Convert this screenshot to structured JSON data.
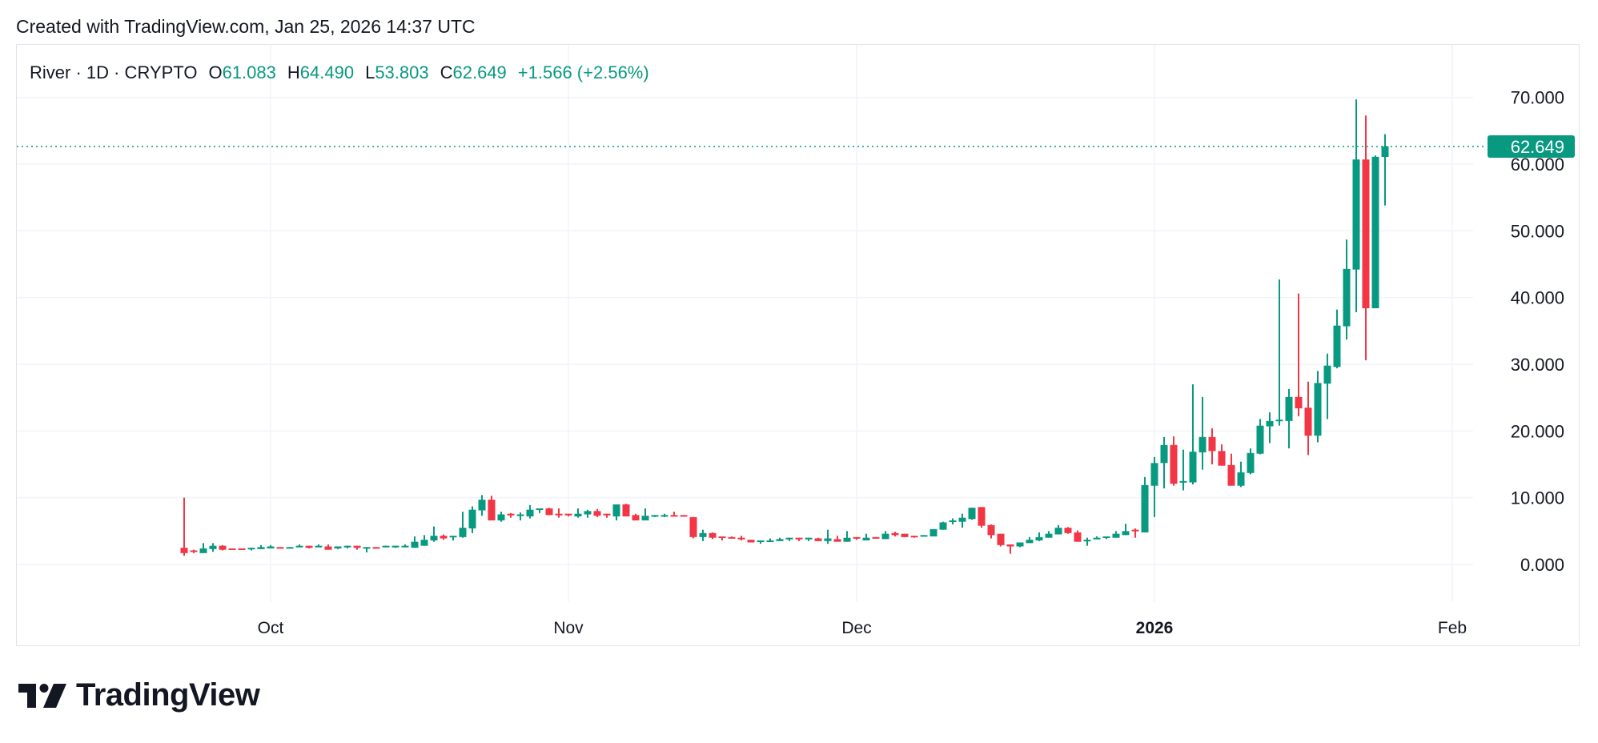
{
  "header": {
    "created": "Created with TradingView.com, Jan 25, 2026 14:37 UTC"
  },
  "legend": {
    "symbol": "River · 1D · CRYPTO",
    "o_label": "O",
    "o_value": "61.083",
    "h_label": "H",
    "h_value": "64.490",
    "l_label": "L",
    "l_value": "53.803",
    "c_label": "C",
    "c_value": "62.649",
    "change": "+1.566 (+2.56%)"
  },
  "logo": {
    "text": "TradingView"
  },
  "colors": {
    "up": "#089981",
    "down": "#F23645",
    "grid": "#f0f3fa",
    "text": "#131722"
  },
  "chart_data": {
    "type": "candlestick",
    "title": "",
    "xlabel": "",
    "ylabel": "",
    "ylim": [
      -5,
      75
    ],
    "y_ticks": [
      "0.000",
      "10.000",
      "20.000",
      "30.000",
      "40.000",
      "50.000",
      "60.000",
      "70.000"
    ],
    "y_tick_values": [
      0,
      10,
      20,
      30,
      40,
      50,
      60,
      70
    ],
    "x_ticks": [
      {
        "label": "Oct",
        "date": "2025-10-01",
        "bold": false
      },
      {
        "label": "Nov",
        "date": "2025-11-01",
        "bold": false
      },
      {
        "label": "Dec",
        "date": "2025-12-01",
        "bold": false
      },
      {
        "label": "2026",
        "date": "2026-01-01",
        "bold": true
      },
      {
        "label": "Feb",
        "date": "2026-02-01",
        "bold": false
      }
    ],
    "grid": true,
    "last_price": {
      "value": 62.649,
      "label": "62.649"
    },
    "candles_fields": [
      "date",
      "open",
      "high",
      "low",
      "close"
    ],
    "candles": [
      [
        "2025-09-22",
        2.5,
        10.0,
        1.3,
        1.7
      ],
      [
        "2025-09-23",
        2.1,
        2.2,
        1.7,
        1.9
      ],
      [
        "2025-09-24",
        1.7,
        3.2,
        1.7,
        2.4
      ],
      [
        "2025-09-25",
        2.3,
        3.2,
        1.9,
        2.8
      ],
      [
        "2025-09-26",
        2.8,
        2.9,
        2.1,
        2.2
      ],
      [
        "2025-09-27",
        2.4,
        2.4,
        2.2,
        2.2
      ],
      [
        "2025-09-28",
        2.4,
        2.4,
        2.2,
        2.2
      ],
      [
        "2025-09-29",
        2.3,
        2.5,
        2.1,
        2.5
      ],
      [
        "2025-09-30",
        2.3,
        2.9,
        2.3,
        2.6
      ],
      [
        "2025-10-01",
        2.4,
        2.9,
        2.4,
        2.7
      ],
      [
        "2025-10-02",
        2.6,
        2.6,
        2.4,
        2.4
      ],
      [
        "2025-10-03",
        2.4,
        2.6,
        2.4,
        2.6
      ],
      [
        "2025-10-04",
        2.6,
        3.0,
        2.6,
        2.8
      ],
      [
        "2025-10-05",
        2.8,
        2.8,
        2.4,
        2.5
      ],
      [
        "2025-10-06",
        2.6,
        3.0,
        2.6,
        2.8
      ],
      [
        "2025-10-07",
        2.7,
        3.0,
        2.2,
        2.2
      ],
      [
        "2025-10-08",
        2.4,
        2.7,
        2.3,
        2.7
      ],
      [
        "2025-10-09",
        2.6,
        2.8,
        2.4,
        2.8
      ],
      [
        "2025-10-10",
        2.8,
        2.8,
        2.2,
        2.5
      ],
      [
        "2025-10-11",
        2.4,
        2.6,
        1.8,
        2.6
      ],
      [
        "2025-10-12",
        2.6,
        2.6,
        2.4,
        2.4
      ],
      [
        "2025-10-13",
        2.6,
        2.8,
        2.6,
        2.8
      ],
      [
        "2025-10-14",
        2.6,
        2.8,
        2.5,
        2.8
      ],
      [
        "2025-10-15",
        2.6,
        3.0,
        2.6,
        2.8
      ],
      [
        "2025-10-16",
        2.5,
        4.2,
        2.5,
        3.4
      ],
      [
        "2025-10-17",
        2.8,
        4.4,
        2.8,
        3.7
      ],
      [
        "2025-10-18",
        3.6,
        5.7,
        3.4,
        4.3
      ],
      [
        "2025-10-19",
        4.3,
        4.5,
        3.7,
        3.9
      ],
      [
        "2025-10-20",
        4.1,
        4.3,
        3.6,
        4.3
      ],
      [
        "2025-10-21",
        4.1,
        7.9,
        4.0,
        5.5
      ],
      [
        "2025-10-22",
        5.4,
        8.7,
        4.7,
        8.2
      ],
      [
        "2025-10-23",
        8.1,
        10.4,
        7.3,
        9.7
      ],
      [
        "2025-10-24",
        9.7,
        10.3,
        6.6,
        6.6
      ],
      [
        "2025-10-25",
        6.6,
        7.9,
        6.4,
        7.5
      ],
      [
        "2025-10-26",
        7.6,
        7.7,
        7.0,
        7.4
      ],
      [
        "2025-10-27",
        7.3,
        7.8,
        6.6,
        7.5
      ],
      [
        "2025-10-28",
        7.2,
        8.9,
        6.9,
        8.2
      ],
      [
        "2025-10-29",
        8.2,
        8.4,
        7.7,
        8.4
      ],
      [
        "2025-10-30",
        8.4,
        8.5,
        7.4,
        7.4
      ],
      [
        "2025-10-31",
        7.6,
        8.4,
        7.0,
        7.4
      ],
      [
        "2025-11-01",
        7.6,
        7.6,
        7.2,
        7.4
      ],
      [
        "2025-11-02",
        7.2,
        8.4,
        7.0,
        7.6
      ],
      [
        "2025-11-03",
        7.5,
        8.2,
        7.0,
        8.0
      ],
      [
        "2025-11-04",
        8.0,
        8.3,
        7.1,
        7.3
      ],
      [
        "2025-11-05",
        7.6,
        7.6,
        7.0,
        7.4
      ],
      [
        "2025-11-06",
        7.2,
        9.0,
        6.6,
        9.0
      ],
      [
        "2025-11-07",
        9.0,
        9.1,
        7.2,
        7.2
      ],
      [
        "2025-11-08",
        7.4,
        7.6,
        6.6,
        6.6
      ],
      [
        "2025-11-09",
        6.6,
        8.4,
        6.6,
        7.3
      ],
      [
        "2025-11-10",
        7.2,
        7.4,
        7.1,
        7.4
      ],
      [
        "2025-11-11",
        7.2,
        7.6,
        7.1,
        7.4
      ],
      [
        "2025-11-12",
        7.4,
        7.9,
        7.2,
        7.2
      ],
      [
        "2025-11-13",
        7.4,
        7.4,
        7.2,
        7.2
      ],
      [
        "2025-11-14",
        7.1,
        7.1,
        3.9,
        4.1
      ],
      [
        "2025-11-15",
        4.1,
        5.2,
        3.5,
        4.7
      ],
      [
        "2025-11-16",
        4.7,
        4.8,
        3.8,
        4.0
      ],
      [
        "2025-11-17",
        4.2,
        4.2,
        3.6,
        4.0
      ],
      [
        "2025-11-18",
        4.1,
        4.2,
        3.9,
        3.9
      ],
      [
        "2025-11-19",
        4.0,
        4.3,
        3.6,
        3.8
      ],
      [
        "2025-11-20",
        3.7,
        3.7,
        3.3,
        3.3
      ],
      [
        "2025-11-21",
        3.4,
        3.6,
        3.1,
        3.6
      ],
      [
        "2025-11-22",
        3.4,
        3.9,
        3.4,
        3.6
      ],
      [
        "2025-11-23",
        3.5,
        4.0,
        3.5,
        3.8
      ],
      [
        "2025-11-24",
        3.8,
        4.0,
        3.5,
        4.0
      ],
      [
        "2025-11-25",
        4.0,
        4.0,
        3.5,
        3.8
      ],
      [
        "2025-11-26",
        3.8,
        4.0,
        3.5,
        4.0
      ],
      [
        "2025-11-27",
        3.9,
        4.0,
        3.5,
        3.5
      ],
      [
        "2025-11-28",
        3.5,
        5.2,
        3.1,
        3.9
      ],
      [
        "2025-11-29",
        3.8,
        4.3,
        3.4,
        3.4
      ],
      [
        "2025-11-30",
        3.4,
        5.0,
        3.4,
        4.0
      ],
      [
        "2025-12-01",
        4.1,
        4.1,
        3.7,
        3.9
      ],
      [
        "2025-12-02",
        3.6,
        4.6,
        3.6,
        4.0
      ],
      [
        "2025-12-03",
        4.1,
        4.1,
        3.9,
        3.9
      ],
      [
        "2025-12-04",
        3.8,
        5.0,
        3.8,
        4.6
      ],
      [
        "2025-12-05",
        4.7,
        4.9,
        4.2,
        4.4
      ],
      [
        "2025-12-06",
        4.6,
        4.6,
        4.1,
        4.1
      ],
      [
        "2025-12-07",
        4.3,
        4.3,
        4.0,
        4.1
      ],
      [
        "2025-12-08",
        4.2,
        4.4,
        4.2,
        4.4
      ],
      [
        "2025-12-09",
        4.2,
        5.3,
        4.2,
        5.3
      ],
      [
        "2025-12-10",
        5.2,
        6.4,
        5.2,
        6.3
      ],
      [
        "2025-12-11",
        6.4,
        6.9,
        6.0,
        6.6
      ],
      [
        "2025-12-12",
        6.4,
        7.6,
        5.5,
        7.0
      ],
      [
        "2025-12-13",
        6.8,
        8.5,
        6.7,
        8.5
      ],
      [
        "2025-12-14",
        8.6,
        8.6,
        5.5,
        5.8
      ],
      [
        "2025-12-15",
        5.9,
        6.0,
        3.9,
        4.4
      ],
      [
        "2025-12-16",
        4.6,
        4.6,
        2.7,
        2.9
      ],
      [
        "2025-12-17",
        3.0,
        3.0,
        1.6,
        2.7
      ],
      [
        "2025-12-18",
        2.7,
        3.3,
        2.6,
        3.3
      ],
      [
        "2025-12-19",
        3.2,
        4.1,
        3.2,
        3.7
      ],
      [
        "2025-12-20",
        3.6,
        4.8,
        3.5,
        4.1
      ],
      [
        "2025-12-21",
        4.0,
        5.0,
        4.0,
        4.6
      ],
      [
        "2025-12-22",
        4.5,
        5.9,
        4.5,
        5.5
      ],
      [
        "2025-12-23",
        5.5,
        5.6,
        4.6,
        4.7
      ],
      [
        "2025-12-24",
        4.8,
        5.1,
        3.4,
        3.4
      ],
      [
        "2025-12-25",
        3.5,
        4.0,
        2.8,
        3.7
      ],
      [
        "2025-12-26",
        3.8,
        4.2,
        3.8,
        4.0
      ],
      [
        "2025-12-27",
        4.0,
        4.2,
        3.8,
        4.2
      ],
      [
        "2025-12-28",
        4.0,
        5.0,
        4.0,
        4.6
      ],
      [
        "2025-12-29",
        4.4,
        6.1,
        4.4,
        5.0
      ],
      [
        "2025-12-30",
        5.2,
        5.4,
        4.0,
        5.0
      ],
      [
        "2025-12-31",
        4.8,
        13.1,
        4.8,
        11.9
      ],
      [
        "2026-01-01",
        11.8,
        16.1,
        7.1,
        15.2
      ],
      [
        "2026-01-02",
        15.2,
        19.1,
        11.4,
        17.9
      ],
      [
        "2026-01-03",
        17.9,
        19.2,
        11.8,
        12.1
      ],
      [
        "2026-01-04",
        12.3,
        17.2,
        11.1,
        12.5
      ],
      [
        "2026-01-05",
        12.3,
        27.0,
        12.0,
        16.9
      ],
      [
        "2026-01-06",
        16.8,
        25.1,
        14.2,
        19.1
      ],
      [
        "2026-01-07",
        19.1,
        20.4,
        15.0,
        17.0
      ],
      [
        "2026-01-08",
        17.0,
        18.0,
        14.8,
        14.8
      ],
      [
        "2026-01-09",
        14.9,
        16.6,
        11.8,
        11.8
      ],
      [
        "2026-01-10",
        11.8,
        15.4,
        11.6,
        13.8
      ],
      [
        "2026-01-11",
        13.7,
        17.4,
        13.5,
        16.7
      ],
      [
        "2026-01-12",
        16.6,
        21.8,
        16.5,
        20.8
      ],
      [
        "2026-01-13",
        20.7,
        22.8,
        18.2,
        21.5
      ],
      [
        "2026-01-14",
        21.6,
        42.7,
        20.8,
        21.7
      ],
      [
        "2026-01-15",
        21.5,
        26.3,
        17.4,
        25.1
      ],
      [
        "2026-01-16",
        25.1,
        40.6,
        22.2,
        23.4
      ],
      [
        "2026-01-17",
        23.5,
        27.4,
        16.4,
        19.3
      ],
      [
        "2026-01-18",
        19.3,
        29.0,
        18.3,
        27.2
      ],
      [
        "2026-01-19",
        27.1,
        31.6,
        21.8,
        29.8
      ],
      [
        "2026-01-20",
        29.6,
        38.2,
        29.4,
        35.8
      ],
      [
        "2026-01-21",
        35.7,
        48.7,
        33.7,
        44.3
      ],
      [
        "2026-01-22",
        44.2,
        69.7,
        37.8,
        60.7
      ],
      [
        "2026-01-23",
        60.7,
        67.3,
        30.6,
        38.4
      ],
      [
        "2026-01-24",
        38.4,
        61.3,
        38.4,
        61.1
      ],
      [
        "2026-01-25",
        61.083,
        64.49,
        53.803,
        62.649
      ]
    ]
  }
}
